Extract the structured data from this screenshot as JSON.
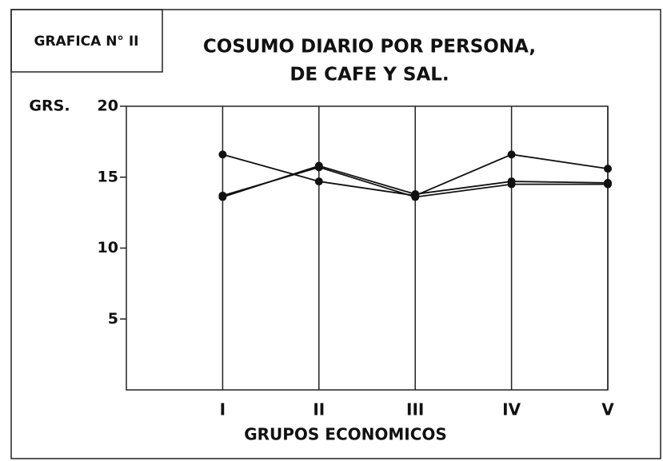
{
  "chart_data": {
    "type": "line",
    "label": "GRAFICA N° II",
    "title": [
      "COSUMO DIARIO POR PERSONA,",
      "DE CAFE Y SAL."
    ],
    "y_label": "GRS.",
    "x_label": "GRUPOS ECONOMICOS",
    "categories": [
      "I",
      "II",
      "III",
      "IV",
      "V"
    ],
    "series": [
      {
        "color": "#111111",
        "values": [
          16.6,
          14.7,
          13.7,
          16.6,
          15.6
        ]
      },
      {
        "color": "#111111",
        "values": [
          13.6,
          15.8,
          13.8,
          14.7,
          14.6
        ]
      },
      {
        "color": "#111111",
        "values": [
          13.7,
          15.7,
          13.6,
          14.5,
          14.5
        ]
      }
    ],
    "ylim": [
      0,
      20
    ],
    "yticks": [
      5,
      10,
      15,
      20
    ],
    "grid": true
  }
}
